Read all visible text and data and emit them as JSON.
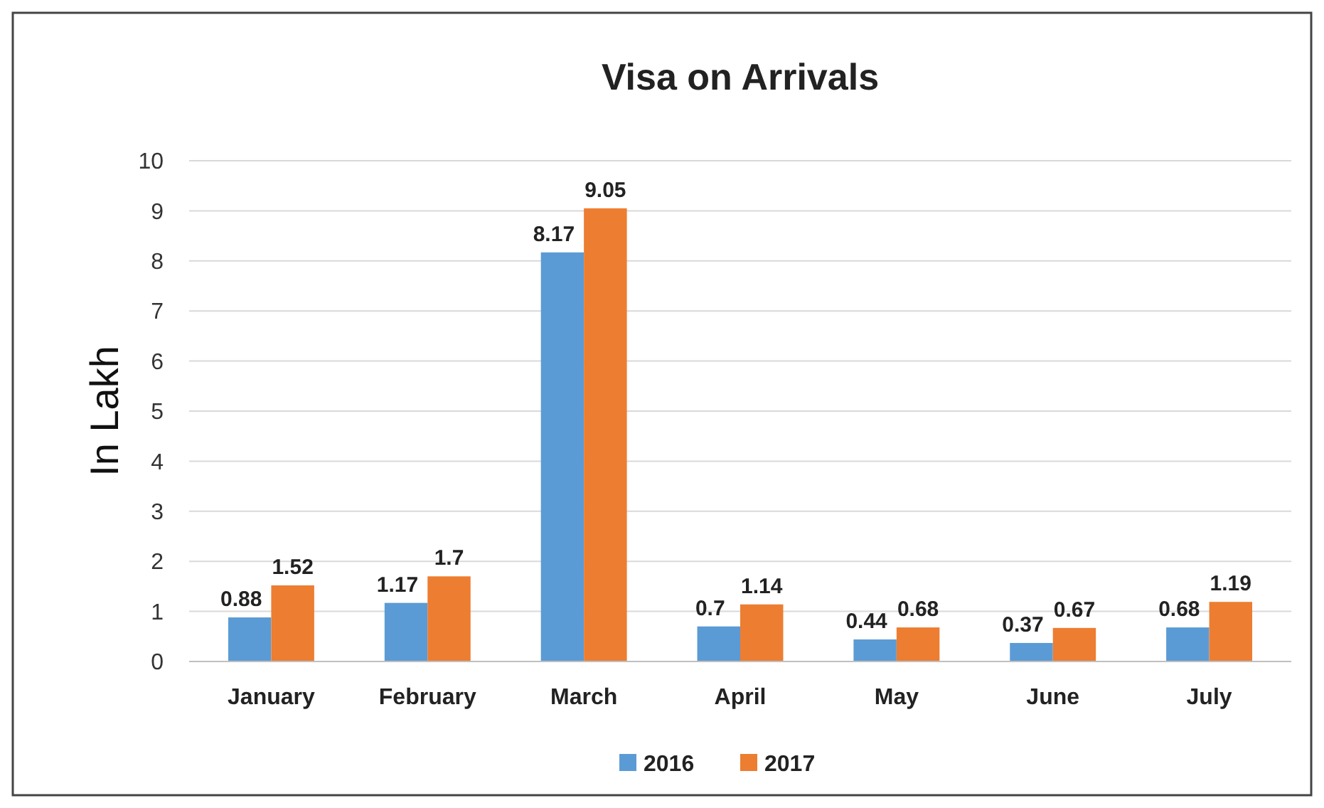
{
  "chart_data": {
    "type": "bar",
    "title": "Visa on Arrivals",
    "ylabel": "In Lakh",
    "categories": [
      "January",
      "February",
      "March",
      "April",
      "May",
      "June",
      "July"
    ],
    "series": [
      {
        "name": "2016",
        "color": "#5b9bd5",
        "values": [
          0.88,
          1.17,
          8.17,
          0.7,
          0.44,
          0.37,
          0.68
        ]
      },
      {
        "name": "2017",
        "color": "#ed7d31",
        "values": [
          1.52,
          1.7,
          9.05,
          1.14,
          0.68,
          0.67,
          1.19
        ]
      }
    ],
    "ylim": [
      0,
      10
    ],
    "yticks": [
      0,
      1,
      2,
      3,
      4,
      5,
      6,
      7,
      8,
      9,
      10
    ],
    "grid": "y",
    "legend": "bottom",
    "data_labels": true
  }
}
